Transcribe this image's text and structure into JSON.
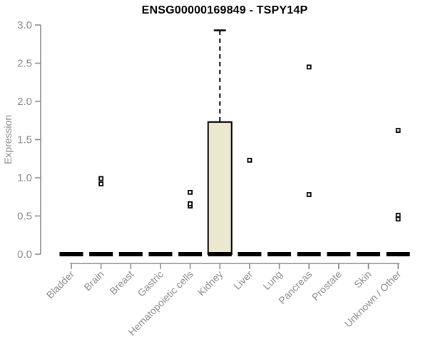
{
  "chart_data": {
    "type": "boxplot",
    "title": "ENSG00000169849 - TSPY14P",
    "xlabel": "",
    "ylabel": "Expression",
    "ylim": [
      0.0,
      3.0
    ],
    "yticks": [
      0.0,
      0.5,
      1.0,
      1.5,
      2.0,
      2.5,
      3.0
    ],
    "grid": false,
    "legend": null,
    "categories": [
      "Bladder",
      "Brain",
      "Breast",
      "Gastric",
      "Hematopoietic cells",
      "Kidney",
      "Liver",
      "Lung",
      "Pancreas",
      "Prostate",
      "Skin",
      "Unknown / Other"
    ],
    "boxes": [
      {
        "category": "Bladder",
        "q1": 0,
        "median": 0,
        "q3": 0,
        "whisker_low": 0,
        "whisker_high": 0,
        "outliers": []
      },
      {
        "category": "Brain",
        "q1": 0,
        "median": 0,
        "q3": 0,
        "whisker_low": 0,
        "whisker_high": 0,
        "outliers": [
          0.92,
          0.99
        ]
      },
      {
        "category": "Breast",
        "q1": 0,
        "median": 0,
        "q3": 0,
        "whisker_low": 0,
        "whisker_high": 0,
        "outliers": []
      },
      {
        "category": "Gastric",
        "q1": 0,
        "median": 0,
        "q3": 0,
        "whisker_low": 0,
        "whisker_high": 0,
        "outliers": []
      },
      {
        "category": "Hematopoietic cells",
        "q1": 0,
        "median": 0,
        "q3": 0,
        "whisker_low": 0,
        "whisker_high": 0,
        "outliers": [
          0.63,
          0.66,
          0.81
        ]
      },
      {
        "category": "Kidney",
        "q1": 0,
        "median": 0,
        "q3": 1.73,
        "whisker_low": 0,
        "whisker_high": 2.93,
        "outliers": []
      },
      {
        "category": "Liver",
        "q1": 0,
        "median": 0,
        "q3": 0,
        "whisker_low": 0,
        "whisker_high": 0,
        "outliers": [
          1.23
        ]
      },
      {
        "category": "Lung",
        "q1": 0,
        "median": 0,
        "q3": 0,
        "whisker_low": 0,
        "whisker_high": 0,
        "outliers": []
      },
      {
        "category": "Pancreas",
        "q1": 0,
        "median": 0,
        "q3": 0,
        "whisker_low": 0,
        "whisker_high": 0,
        "outliers": [
          0.78,
          2.45
        ]
      },
      {
        "category": "Prostate",
        "q1": 0,
        "median": 0,
        "q3": 0,
        "whisker_low": 0,
        "whisker_high": 0,
        "outliers": []
      },
      {
        "category": "Skin",
        "q1": 0,
        "median": 0,
        "q3": 0,
        "whisker_low": 0,
        "whisker_high": 0,
        "outliers": []
      },
      {
        "category": "Unknown / Other",
        "q1": 0,
        "median": 0,
        "q3": 0,
        "whisker_low": 0,
        "whisker_high": 0,
        "outliers": [
          0.46,
          0.51,
          1.62
        ]
      }
    ],
    "colors": {
      "box_fill": "#ECE7CE",
      "box_border": "#000000",
      "median": "#000000",
      "whisker": "#000000",
      "outlier_stroke": "#000000",
      "outlier_fill": "#FFFFFF",
      "axis": "#8A8A8A",
      "tick_label": "#8A8A8A",
      "title": "#000000",
      "background": "#FFFFFF"
    }
  }
}
